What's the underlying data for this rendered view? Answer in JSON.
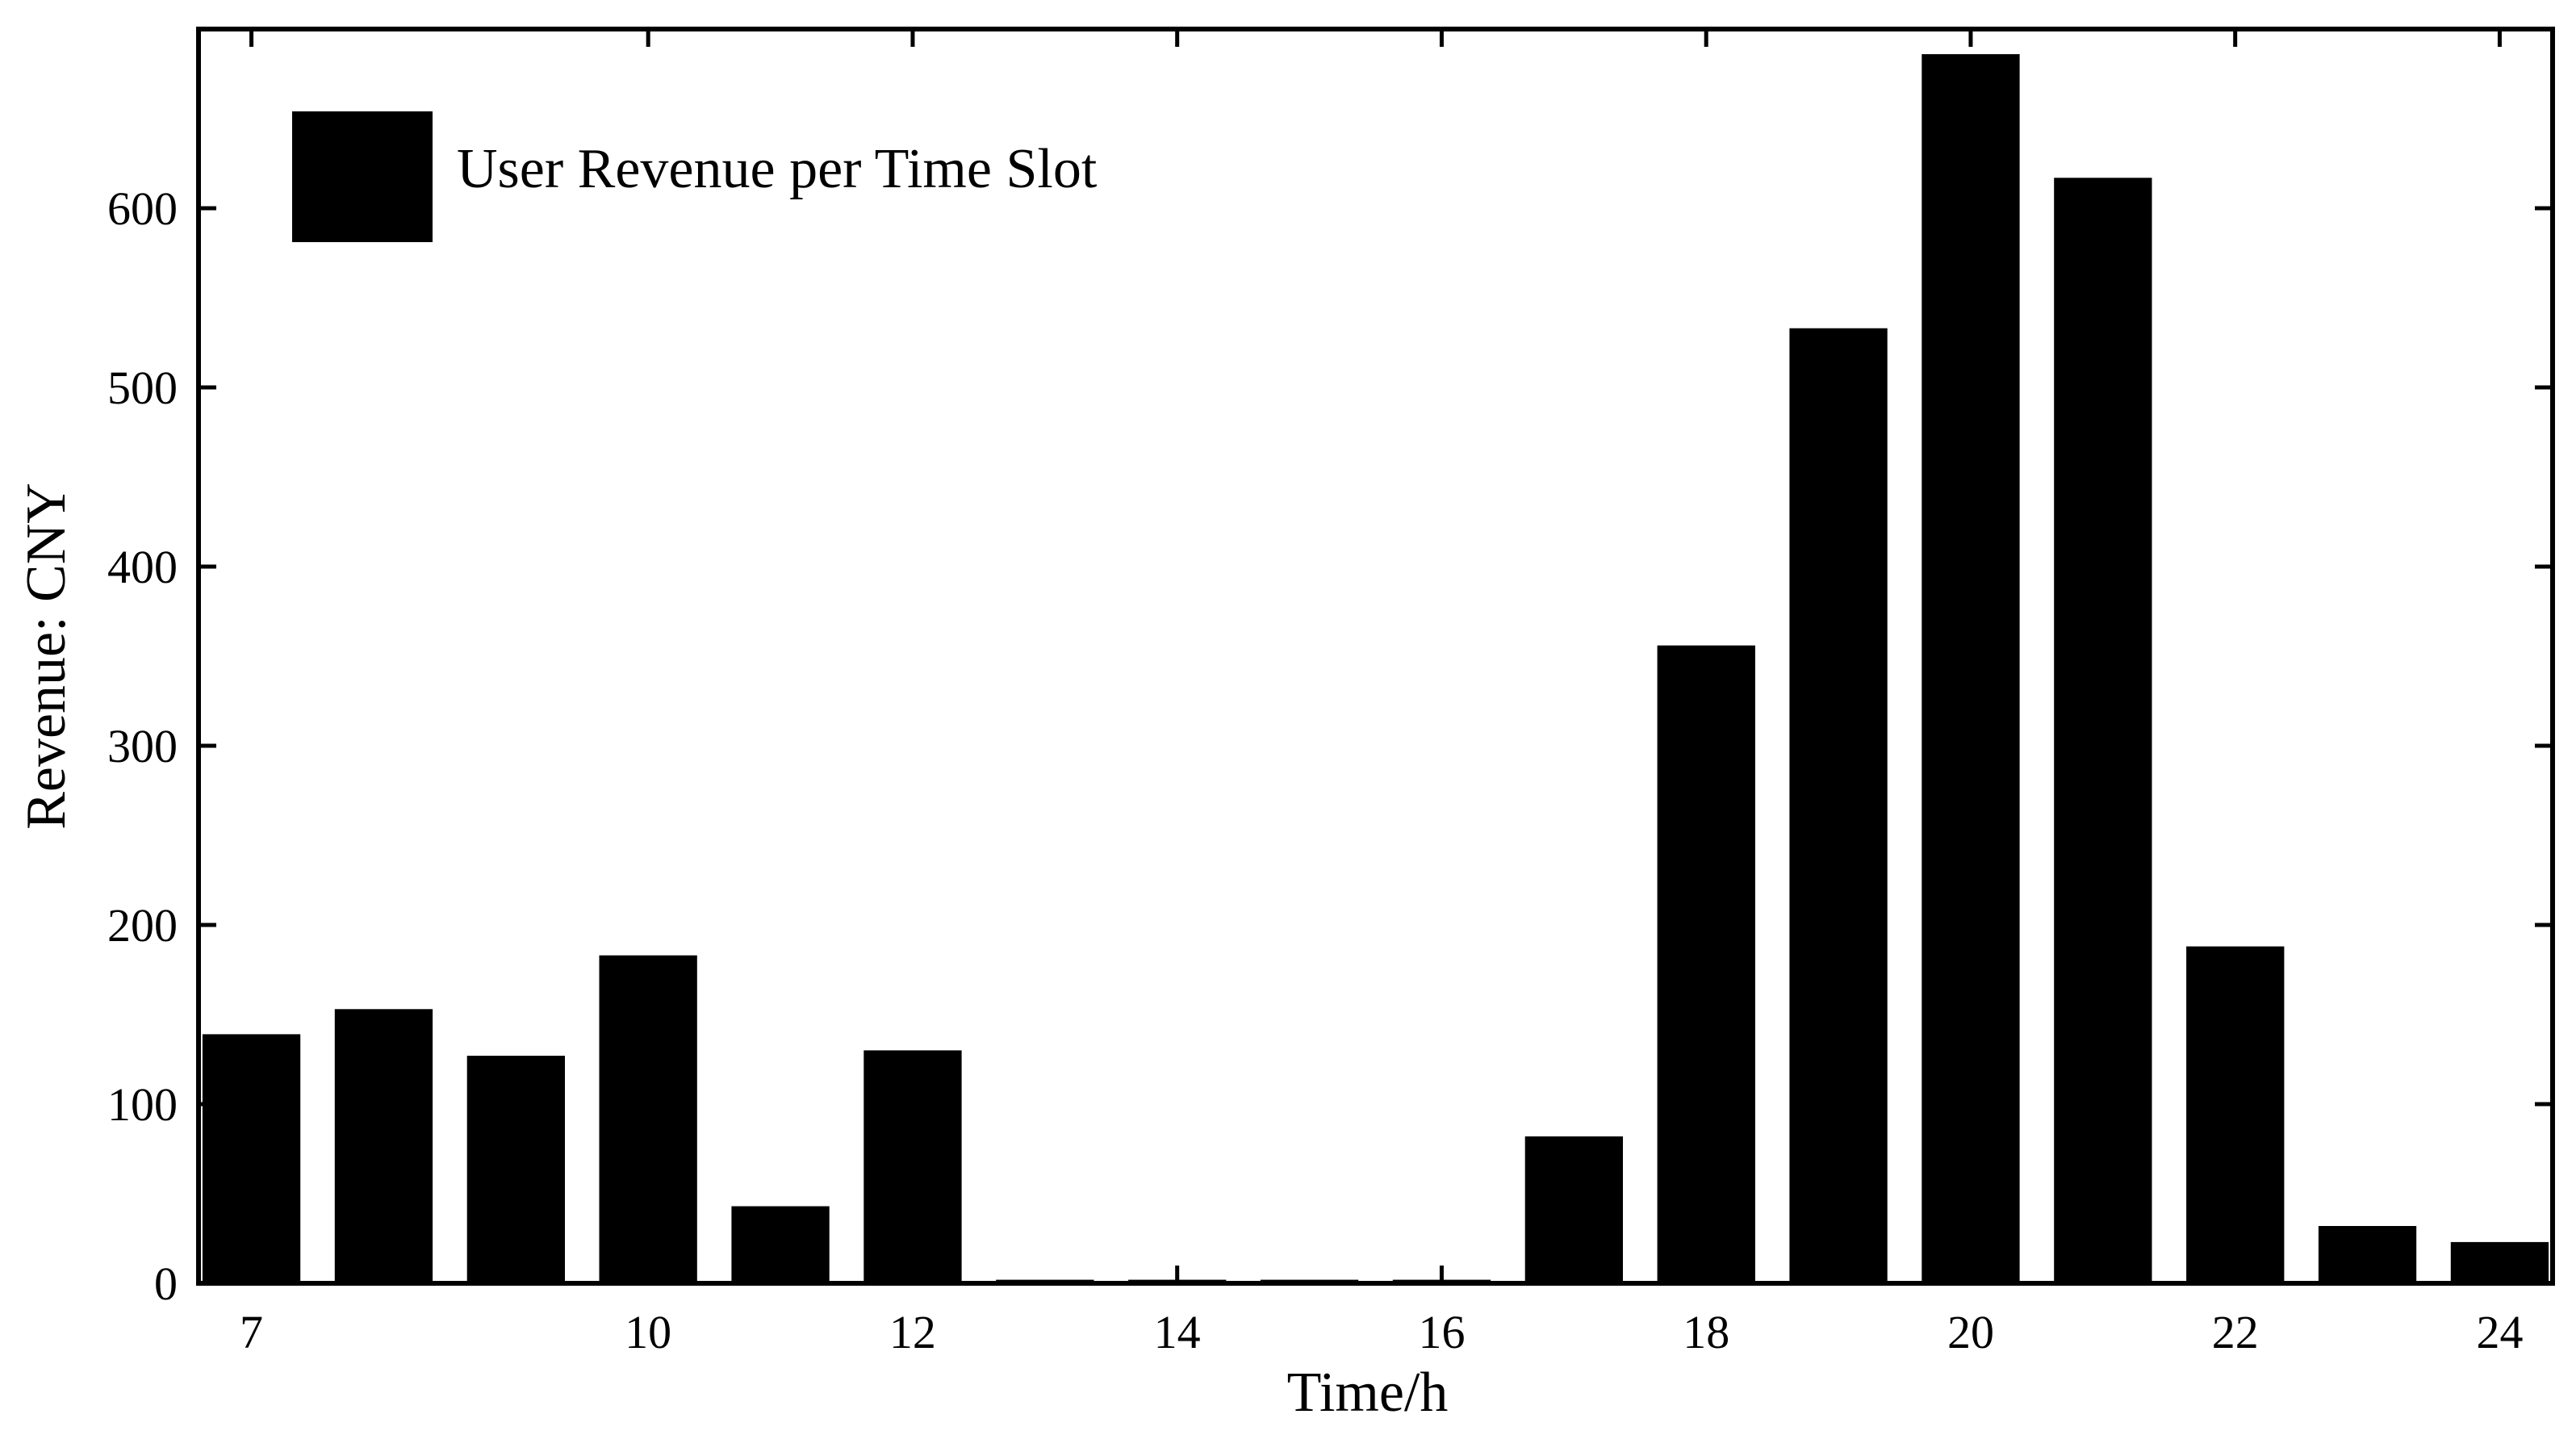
{
  "chart_data": {
    "type": "bar",
    "x": [
      7,
      8,
      9,
      10,
      11,
      12,
      13,
      14,
      15,
      16,
      17,
      18,
      19,
      20,
      21,
      22,
      23,
      24
    ],
    "series": [
      {
        "name": "User Revenue per Time Slot",
        "color": "#000000",
        "values": [
          139,
          153,
          127,
          183,
          43,
          130,
          2,
          2,
          2,
          2,
          82,
          356,
          533,
          686,
          617,
          188,
          32,
          23
        ]
      }
    ],
    "xticks": [
      7,
      10,
      12,
      14,
      16,
      18,
      20,
      22,
      24
    ],
    "yticks": [
      0,
      100,
      200,
      300,
      400,
      500,
      600
    ],
    "xlabel": "Time/h",
    "ylabel": "Revenue: CNY",
    "xlim": [
      6.6,
      24.4
    ],
    "ylim": [
      0,
      700
    ],
    "grid": false,
    "legend_position": "top-left"
  }
}
